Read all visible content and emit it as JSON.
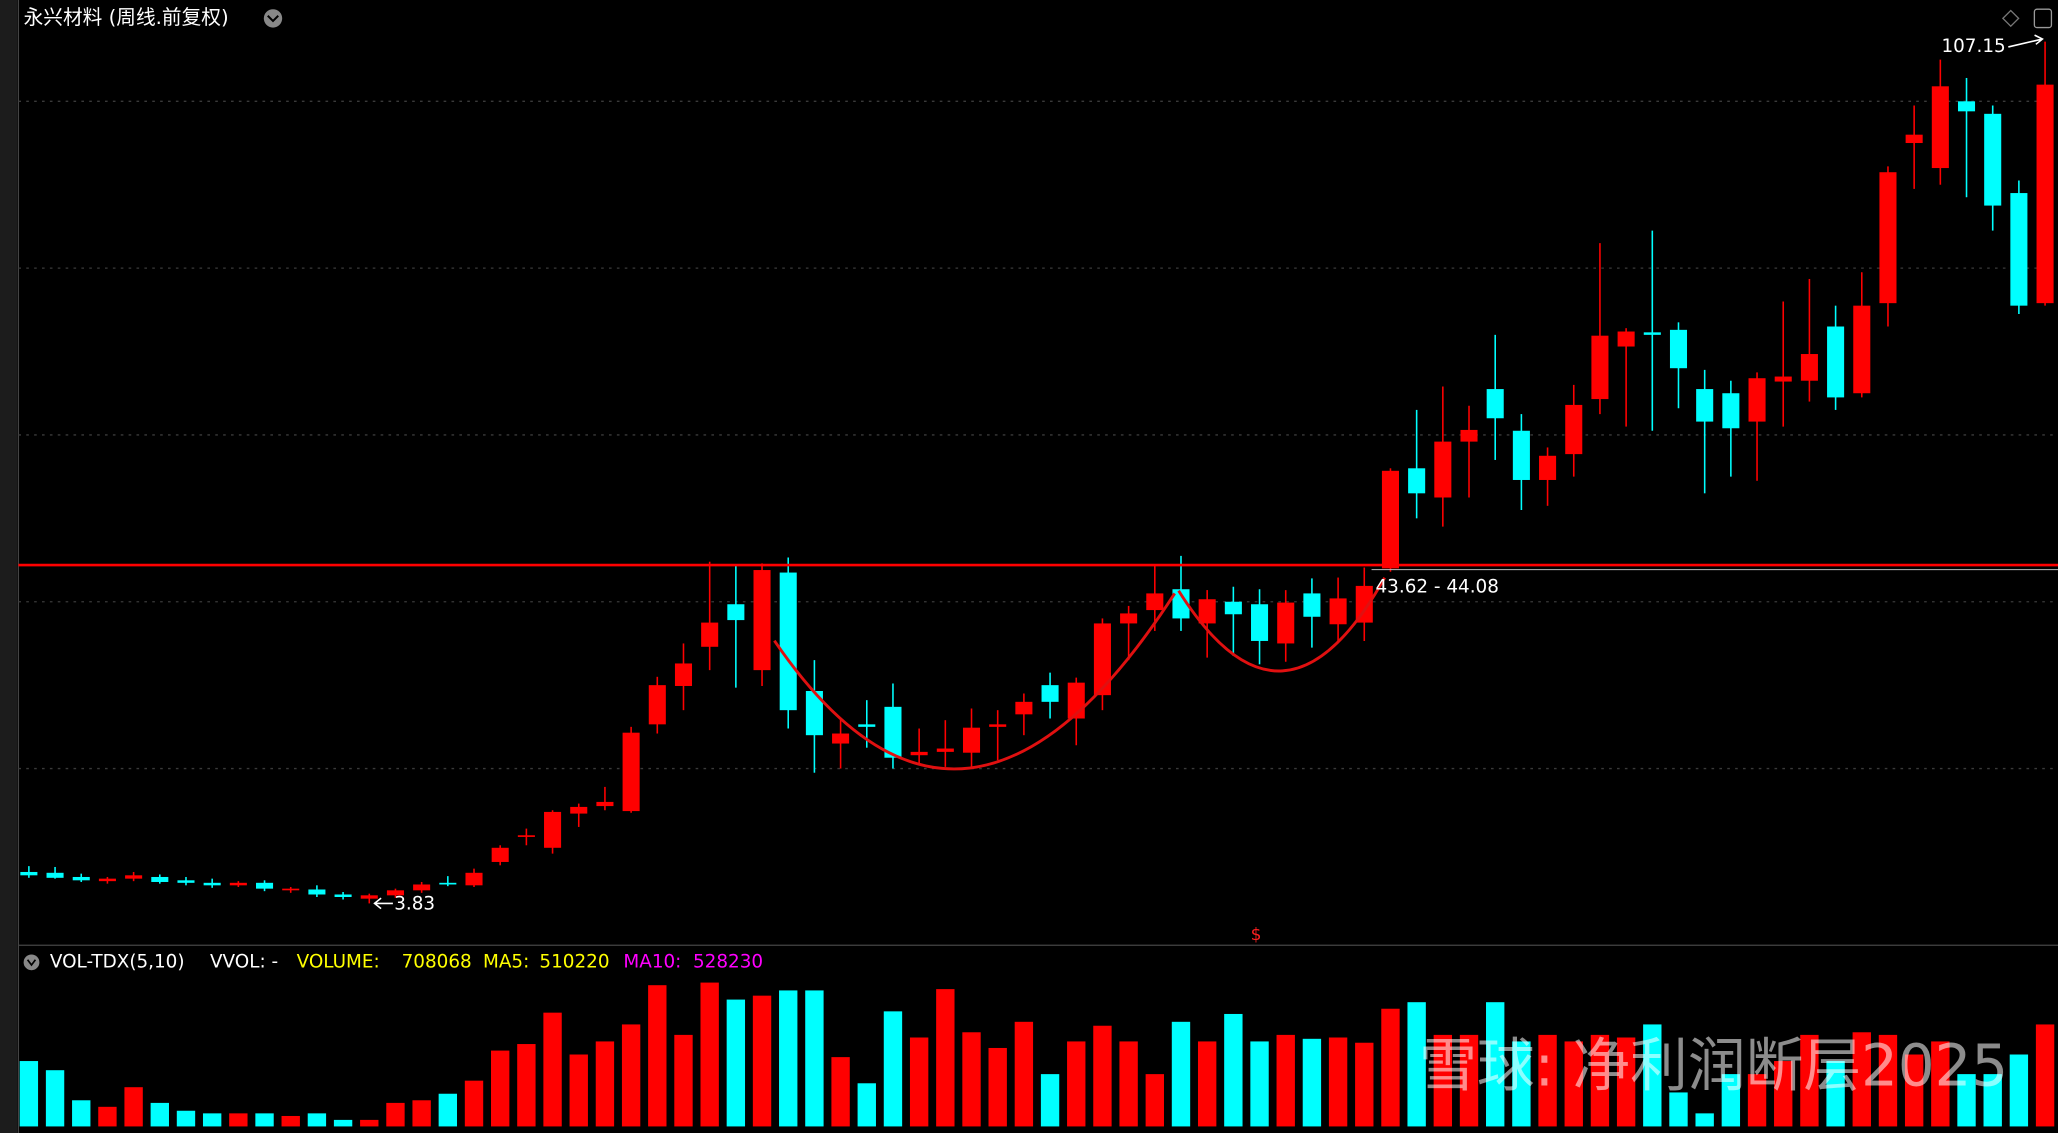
{
  "chart_data": {
    "type": "candlestick",
    "title": "永兴材料 (周线.前复权)",
    "open": [
      7.6,
      7.5,
      7.0,
      6.5,
      6.8,
      7.0,
      6.6,
      6.3,
      6.0,
      6.3,
      5.4,
      5.5,
      4.9,
      4.4,
      4.8,
      5.4,
      6.3,
      6.0,
      8.8,
      11.8,
      10.5,
      14.6,
      15.5,
      14.9,
      25.3,
      29.9,
      34.6,
      39.7,
      31.8,
      43.5,
      29.3,
      23.0,
      25.3,
      27.4,
      21.6,
      22.0,
      21.9,
      25.0,
      26.5,
      30.0,
      26.0,
      28.8,
      37.4,
      39.0,
      41.5,
      37.4,
      40.0,
      39.7,
      35.0,
      41.0,
      37.3,
      37.5,
      44.0,
      56.0,
      52.5,
      59.2,
      65.5,
      60.5,
      54.6,
      57.7,
      64.3,
      70.6,
      72.3,
      72.6,
      65.5,
      65.0,
      61.6,
      66.4,
      66.5,
      73.0,
      65.0,
      75.8,
      95.0,
      92.0,
      100.0,
      98.5,
      89.0,
      75.8
    ],
    "high": [
      8.3,
      8.2,
      7.4,
      7.0,
      7.6,
      7.3,
      7.0,
      6.8,
      6.5,
      6.6,
      5.8,
      6.0,
      5.2,
      5.0,
      5.6,
      6.4,
      7.1,
      8.0,
      10.8,
      12.8,
      15.0,
      15.8,
      17.8,
      25.0,
      31.0,
      35.0,
      44.8,
      44.5,
      44.6,
      45.3,
      33.0,
      26.0,
      28.2,
      30.2,
      24.8,
      25.8,
      27.2,
      27.0,
      29.0,
      31.5,
      30.9,
      38.0,
      39.5,
      44.5,
      45.5,
      41.4,
      41.8,
      41.5,
      41.4,
      42.8,
      42.9,
      44.1,
      56.0,
      63.0,
      65.8,
      63.5,
      72.0,
      62.5,
      58.5,
      66.0,
      83.0,
      72.8,
      84.5,
      73.5,
      67.8,
      66.5,
      67.5,
      76.0,
      78.7,
      75.5,
      79.5,
      92.2,
      99.5,
      105.0,
      102.8,
      99.5,
      90.5,
      107.15
    ],
    "low": [
      6.9,
      6.8,
      6.4,
      6.2,
      6.5,
      6.2,
      6.0,
      5.7,
      5.8,
      5.3,
      5.1,
      4.6,
      4.3,
      3.83,
      4.5,
      5.1,
      5.9,
      5.8,
      8.4,
      10.8,
      9.8,
      13.0,
      15.0,
      14.7,
      24.2,
      27.0,
      31.8,
      29.7,
      29.9,
      24.8,
      19.5,
      20.0,
      22.5,
      20.0,
      20.5,
      20.2,
      20.0,
      21.0,
      24.0,
      26.0,
      22.8,
      27.0,
      33.0,
      36.5,
      36.5,
      33.3,
      33.5,
      32.5,
      32.8,
      34.5,
      35.1,
      35.3,
      43.6,
      50.0,
      49.0,
      52.5,
      57.0,
      51.0,
      51.5,
      55.0,
      62.5,
      61.0,
      60.5,
      63.2,
      53.0,
      55.0,
      54.5,
      61.0,
      64.0,
      63.0,
      64.5,
      73.0,
      89.5,
      90.0,
      88.5,
      84.5,
      74.5,
      75.5
    ],
    "close": [
      7.2,
      6.9,
      6.6,
      6.8,
      7.2,
      6.4,
      6.3,
      6.0,
      6.3,
      5.6,
      5.6,
      4.9,
      4.6,
      4.8,
      5.4,
      6.1,
      6.1,
      7.5,
      10.5,
      12.0,
      14.8,
      15.4,
      16.0,
      24.3,
      30.0,
      32.6,
      37.5,
      37.8,
      43.8,
      27.0,
      24.0,
      24.2,
      25.0,
      21.3,
      22.0,
      22.4,
      24.9,
      25.3,
      28.0,
      28.0,
      30.3,
      37.4,
      38.6,
      41.0,
      38.0,
      40.3,
      38.5,
      35.3,
      39.9,
      38.2,
      40.4,
      41.9,
      55.7,
      53.0,
      59.2,
      60.6,
      62.0,
      54.6,
      57.5,
      63.6,
      71.9,
      72.4,
      72.0,
      68.0,
      61.6,
      60.8,
      66.8,
      67.0,
      69.7,
      64.5,
      75.5,
      91.5,
      96.0,
      101.8,
      98.8,
      87.5,
      75.5,
      102.0
    ],
    "volume": [
      454000,
      390440,
      181600,
      136200,
      272400,
      163440,
      108960,
      90800,
      90800,
      90800,
      72640,
      90800,
      45400,
      45400,
      163440,
      181600,
      227000,
      317800,
      526640,
      572040,
      789960,
      499400,
      590200,
      708240,
      980640,
      635600,
      998800,
      880760,
      908000,
      944320,
      944320,
      481240,
      299640,
      799040,
      617440,
      953400,
      653760,
      544800,
      726400,
      363200,
      590200,
      699160,
      590200,
      363200,
      726400,
      590200,
      780880,
      590200,
      635600,
      608360,
      617440,
      581120,
      817200,
      862600,
      635600,
      635600,
      862600,
      590200,
      635600,
      590200,
      635600,
      617440,
      708240,
      236080,
      90800,
      363200,
      363200,
      454000,
      635600,
      454000,
      653760,
      635600,
      499400,
      590200,
      363200,
      363200,
      499400,
      708068
    ],
    "up_color": "#ff0000",
    "down_color": "#00ffff",
    "ylim": [
      -0.4,
      109
    ],
    "grid_lines": [
      20,
      40,
      60,
      80,
      100
    ],
    "resistance": 44.4,
    "resistance_color": "#ff0000",
    "range_label": "43.62 - 44.08",
    "marker": "$",
    "volume_panel": {
      "ylim": [
        0,
        1030000
      ],
      "indicator": "VOL-TDX(5,10)",
      "vvol_label": "VVOL: -",
      "volume_label": "VOLUME:",
      "ma5_label": "MA5:",
      "ma5": 510220,
      "ma10_label": "MA10:",
      "ma10": 528230
    },
    "watermark": "雪球: 净利润断层2025"
  }
}
